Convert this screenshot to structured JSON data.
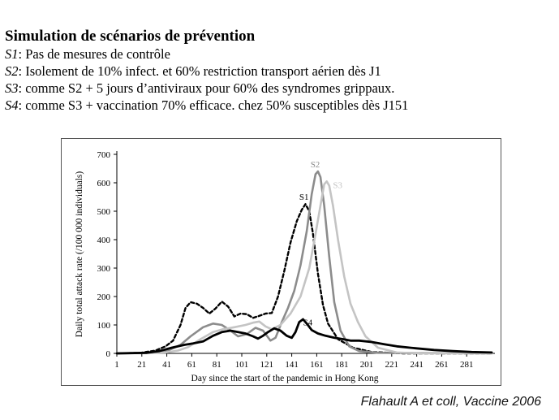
{
  "caption": {
    "title": "Simulation de scénarios de prévention",
    "scenarios": [
      {
        "code": "S1",
        "text": ": Pas de mesures de contrôle"
      },
      {
        "code": "S2",
        "text": ": Isolement de 10% infect. et 60% restriction transport aérien dès J1"
      },
      {
        "code": "S3",
        "text": ": comme S2 + 5 jours d’antiviraux pour 60% des syndromes grippaux."
      },
      {
        "code": "S4",
        "text": ": comme S3 + vaccination 70% efficace. chez 50% susceptibles dès J151"
      }
    ]
  },
  "chart_data": {
    "type": "line",
    "xlabel": "Day since the start of the pandemic in Hong Kong",
    "ylabel": "Daily total attack rate (/100 000 individuals)",
    "xlim": [
      1,
      301
    ],
    "ylim": [
      0,
      700
    ],
    "xticks": [
      1,
      21,
      41,
      61,
      81,
      101,
      121,
      141,
      161,
      181,
      201,
      221,
      241,
      261,
      281
    ],
    "yticks": [
      0,
      100,
      200,
      300,
      400,
      500,
      600,
      700
    ],
    "grid": false,
    "legend": "inline labels",
    "series": [
      {
        "name": "S1",
        "color": "#000000",
        "dash": "4 3",
        "width": 2.4,
        "label_at": [
          147,
          540
        ],
        "points": [
          [
            1,
            0
          ],
          [
            20,
            2
          ],
          [
            32,
            10
          ],
          [
            40,
            25
          ],
          [
            46,
            45
          ],
          [
            52,
            100
          ],
          [
            56,
            160
          ],
          [
            60,
            180
          ],
          [
            65,
            175
          ],
          [
            70,
            160
          ],
          [
            75,
            140
          ],
          [
            80,
            158
          ],
          [
            85,
            182
          ],
          [
            90,
            165
          ],
          [
            95,
            130
          ],
          [
            100,
            140
          ],
          [
            105,
            138
          ],
          [
            110,
            125
          ],
          [
            115,
            132
          ],
          [
            120,
            140
          ],
          [
            125,
            142
          ],
          [
            130,
            200
          ],
          [
            135,
            290
          ],
          [
            140,
            390
          ],
          [
            145,
            465
          ],
          [
            149,
            505
          ],
          [
            152,
            525
          ],
          [
            155,
            500
          ],
          [
            158,
            420
          ],
          [
            162,
            280
          ],
          [
            166,
            170
          ],
          [
            170,
            105
          ],
          [
            178,
            50
          ],
          [
            190,
            20
          ],
          [
            205,
            5
          ],
          [
            230,
            0
          ],
          [
            301,
            0
          ]
        ]
      },
      {
        "name": "S2",
        "color": "#8c8c8c",
        "dash": "",
        "width": 2.6,
        "label_at": [
          156,
          655
        ],
        "points": [
          [
            1,
            0
          ],
          [
            30,
            2
          ],
          [
            42,
            10
          ],
          [
            52,
            30
          ],
          [
            60,
            60
          ],
          [
            70,
            92
          ],
          [
            78,
            105
          ],
          [
            85,
            100
          ],
          [
            92,
            80
          ],
          [
            98,
            60
          ],
          [
            105,
            68
          ],
          [
            112,
            90
          ],
          [
            118,
            80
          ],
          [
            124,
            45
          ],
          [
            128,
            55
          ],
          [
            133,
            110
          ],
          [
            138,
            160
          ],
          [
            143,
            220
          ],
          [
            148,
            310
          ],
          [
            153,
            430
          ],
          [
            157,
            560
          ],
          [
            160,
            630
          ],
          [
            162,
            640
          ],
          [
            164,
            620
          ],
          [
            167,
            520
          ],
          [
            171,
            340
          ],
          [
            175,
            180
          ],
          [
            180,
            80
          ],
          [
            187,
            25
          ],
          [
            195,
            8
          ],
          [
            210,
            2
          ],
          [
            301,
            0
          ]
        ]
      },
      {
        "name": "S3",
        "color": "#c4c4c4",
        "dash": "",
        "width": 2.6,
        "label_at": [
          174,
          582
        ],
        "points": [
          [
            1,
            0
          ],
          [
            40,
            3
          ],
          [
            50,
            10
          ],
          [
            58,
            22
          ],
          [
            68,
            50
          ],
          [
            78,
            75
          ],
          [
            86,
            85
          ],
          [
            95,
            92
          ],
          [
            104,
            100
          ],
          [
            110,
            108
          ],
          [
            115,
            112
          ],
          [
            120,
            95
          ],
          [
            125,
            85
          ],
          [
            132,
            100
          ],
          [
            140,
            140
          ],
          [
            148,
            200
          ],
          [
            155,
            300
          ],
          [
            160,
            420
          ],
          [
            164,
            520
          ],
          [
            167,
            595
          ],
          [
            169,
            605
          ],
          [
            171,
            590
          ],
          [
            174,
            520
          ],
          [
            178,
            400
          ],
          [
            183,
            270
          ],
          [
            188,
            175
          ],
          [
            194,
            110
          ],
          [
            200,
            60
          ],
          [
            210,
            20
          ],
          [
            225,
            3
          ],
          [
            245,
            0
          ],
          [
            301,
            0
          ]
        ]
      },
      {
        "name": "S4",
        "color": "#000000",
        "dash": "",
        "width": 2.8,
        "label_at": [
          150,
          98
        ],
        "points": [
          [
            1,
            0
          ],
          [
            25,
            2
          ],
          [
            35,
            8
          ],
          [
            45,
            20
          ],
          [
            55,
            30
          ],
          [
            62,
            35
          ],
          [
            70,
            42
          ],
          [
            78,
            62
          ],
          [
            85,
            75
          ],
          [
            92,
            80
          ],
          [
            98,
            75
          ],
          [
            104,
            70
          ],
          [
            110,
            60
          ],
          [
            114,
            52
          ],
          [
            118,
            62
          ],
          [
            122,
            75
          ],
          [
            127,
            88
          ],
          [
            132,
            80
          ],
          [
            137,
            62
          ],
          [
            141,
            55
          ],
          [
            144,
            75
          ],
          [
            147,
            110
          ],
          [
            150,
            120
          ],
          [
            153,
            105
          ],
          [
            157,
            82
          ],
          [
            162,
            70
          ],
          [
            168,
            62
          ],
          [
            175,
            55
          ],
          [
            182,
            50
          ],
          [
            188,
            45
          ],
          [
            195,
            45
          ],
          [
            205,
            40
          ],
          [
            215,
            32
          ],
          [
            225,
            25
          ],
          [
            240,
            18
          ],
          [
            255,
            12
          ],
          [
            270,
            8
          ],
          [
            285,
            5
          ],
          [
            301,
            3
          ]
        ]
      }
    ]
  },
  "citation": "Flahault A et coll, Vaccine 2006"
}
